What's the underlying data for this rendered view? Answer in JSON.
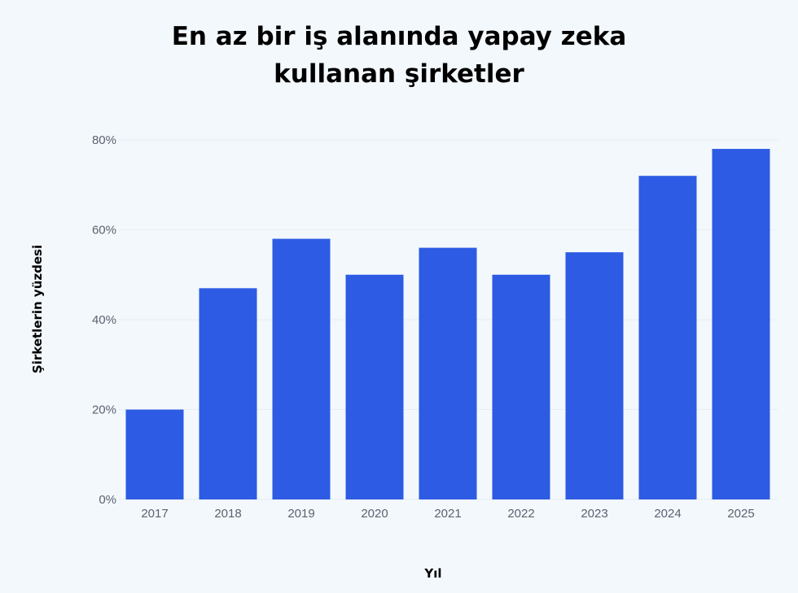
{
  "title_line1": "En az bir iş alanında yapay zeka",
  "title_line2": "kullanan şirketler",
  "chart_data": {
    "type": "bar",
    "title": "En az bir iş alanında yapay zeka kullanan şirketler",
    "xlabel": "Yıl",
    "ylabel": "Şirketlerin yüzdesi",
    "categories": [
      "2017",
      "2018",
      "2019",
      "2020",
      "2021",
      "2022",
      "2023",
      "2024",
      "2025"
    ],
    "values": [
      20,
      47,
      58,
      50,
      56,
      50,
      55,
      72,
      78
    ],
    "ylim": [
      0,
      80
    ],
    "yticks": [
      0,
      20,
      40,
      60,
      80
    ],
    "ytick_labels": [
      "0%",
      "20%",
      "40%",
      "60%",
      "80%"
    ],
    "bar_color": "#2d5be3",
    "grid": true,
    "grid_color": "#e6edf4"
  }
}
